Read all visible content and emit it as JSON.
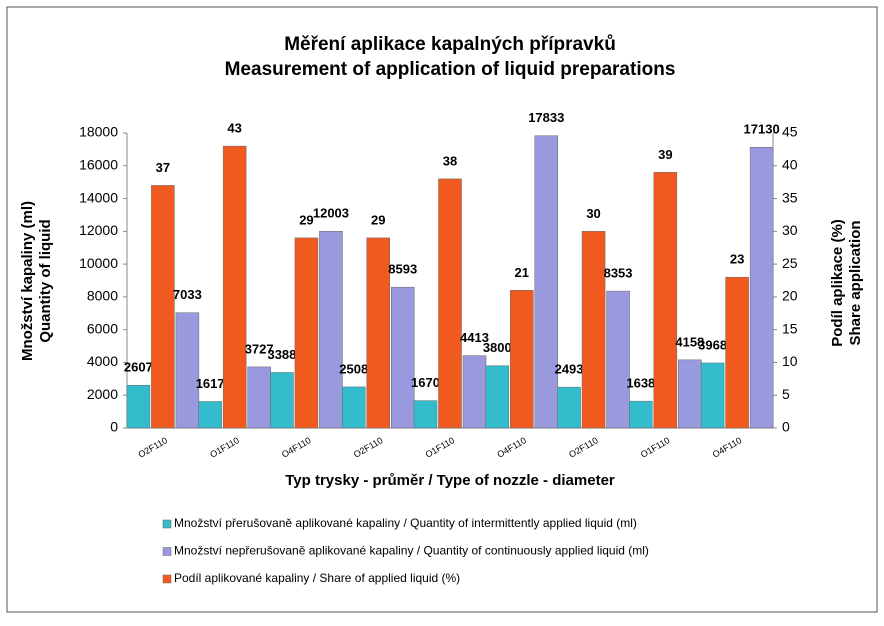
{
  "chart_data": {
    "type": "bar",
    "title": [
      "Měření  aplikace kapalných přípravků",
      "Measurement of application of liquid preparations"
    ],
    "ylabel": [
      "Množství kapaliny (ml)",
      "Quantity of liquid"
    ],
    "y2label": [
      "Podíl aplikace (%)",
      "Share application"
    ],
    "xlabel": "Typ trysky  - průměr / Type of nozzle - diameter",
    "categories": [
      "O2F110",
      "O1F110",
      "O4F110",
      "O2F110",
      "O1F110",
      "O4F110",
      "O2F110",
      "O1F110",
      "O4F110"
    ],
    "series": [
      {
        "name": "Množství přerušovaně aplikované kapaliny / Quantity of intermittently applied liquid (ml)",
        "color": "#33bccc",
        "values": [
          2607,
          1617,
          3388,
          2508,
          1670,
          3800,
          2493,
          1638,
          3968
        ]
      },
      {
        "name": "Podíl aplikované kapaliny / Share of applied liquid (%)",
        "color": "#f05a1e",
        "axis": "y2",
        "values": [
          37,
          43,
          29,
          29,
          38,
          21,
          30,
          39,
          23
        ]
      },
      {
        "name": "Množství nepřerušovaně aplikované kapaliny / Quantity of continuously applied liquid (ml)",
        "color": "#9999dd",
        "values": [
          7033,
          3727,
          12003,
          8593,
          4413,
          17833,
          8353,
          4158,
          17130
        ]
      }
    ],
    "legend_order": [
      0,
      2,
      1
    ],
    "ylim": [
      0,
      18000
    ],
    "yticks": [
      0,
      2000,
      4000,
      6000,
      8000,
      10000,
      12000,
      14000,
      16000,
      18000
    ],
    "y2lim": [
      0,
      45
    ],
    "y2ticks": [
      0,
      5,
      10,
      15,
      20,
      25,
      30,
      35,
      40,
      45
    ]
  }
}
